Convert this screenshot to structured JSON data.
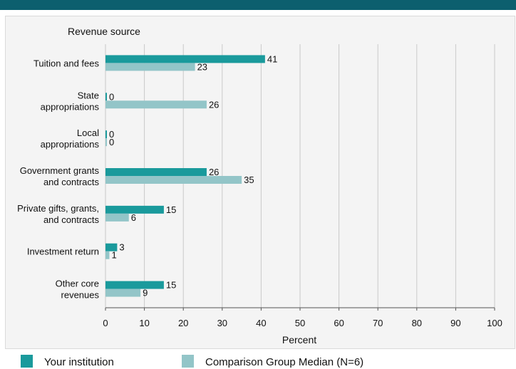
{
  "chart_data": {
    "type": "bar",
    "orientation": "horizontal",
    "title": "Revenue source",
    "xlabel": "Percent",
    "xlim": [
      0,
      100
    ],
    "xticks": [
      0,
      10,
      20,
      30,
      40,
      50,
      60,
      70,
      80,
      90,
      100
    ],
    "grid": true,
    "legend_position": "bottom",
    "categories": [
      [
        "Tuition and fees"
      ],
      [
        "State",
        "appropriations"
      ],
      [
        "Local",
        "appropriations"
      ],
      [
        "Government grants",
        "and contracts"
      ],
      [
        "Private gifts, grants,",
        "and contracts"
      ],
      [
        "Investment return"
      ],
      [
        "Other core",
        "revenues"
      ]
    ],
    "series": [
      {
        "name": "Your institution",
        "color": "#1a9a9c",
        "values": [
          41,
          0,
          0,
          26,
          15,
          3,
          15
        ]
      },
      {
        "name": "Comparison Group Median (N=6)",
        "color": "#93c5c8",
        "values": [
          23,
          26,
          0,
          35,
          6,
          1,
          9
        ]
      }
    ]
  },
  "legend": {
    "institution_label": "Your institution",
    "comparison_label": "Comparison Group Median (N=6)"
  }
}
